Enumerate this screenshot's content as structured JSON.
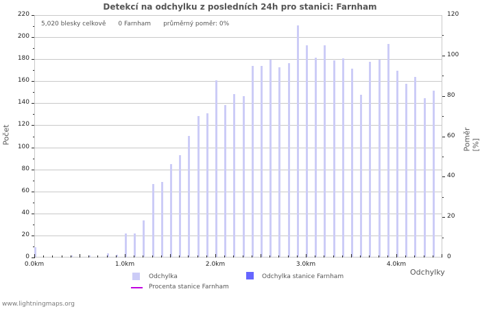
{
  "title": "Detekcí na odchylku z posledních 24h pro stanici: Farnham",
  "stats": {
    "total": "5,020 blesky celkově",
    "station": "0 Farnham",
    "ratio": "průměrný poměr: 0%"
  },
  "axes": {
    "left_label": "Počet",
    "right_label": "Poměr [%]",
    "x_label": "Odchylky",
    "left_ticks": [
      "0",
      "20",
      "40",
      "60",
      "80",
      "100",
      "120",
      "140",
      "160",
      "180",
      "200",
      "220"
    ],
    "right_ticks": [
      "0",
      "20",
      "40",
      "60",
      "80",
      "100",
      "120"
    ],
    "x_ticks": [
      "0.0km",
      "1.0km",
      "2.0km",
      "3.0km",
      "4.0km"
    ]
  },
  "legend": {
    "series1": "Odchylka",
    "series2": "Odchylka stanice Farnham",
    "series3": "Procenta stanice Farnham"
  },
  "colors": {
    "bar": "#ccccf7",
    "station_bar": "#6666ff",
    "line": "#c000e0",
    "grid": "#c8c8c8"
  },
  "footer": "www.lightningmaps.org",
  "chart_data": {
    "type": "bar",
    "title": "Detekcí na odchylku z posledních 24h pro stanici: Farnham",
    "xlabel": "Odchylky",
    "ylabel": "Počet",
    "y2label": "Poměr [%]",
    "ylim": [
      0,
      220
    ],
    "y2lim": [
      0,
      120
    ],
    "grid": true,
    "legend_position": "bottom",
    "categories": [
      "0.0km",
      "0.1km",
      "0.2km",
      "0.3km",
      "0.4km",
      "0.5km",
      "0.6km",
      "0.7km",
      "0.8km",
      "0.9km",
      "1.0km",
      "1.1km",
      "1.2km",
      "1.3km",
      "1.4km",
      "1.5km",
      "1.6km",
      "1.7km",
      "1.8km",
      "1.9km",
      "2.0km",
      "2.1km",
      "2.2km",
      "2.3km",
      "2.4km",
      "2.5km",
      "2.6km",
      "2.7km",
      "2.8km",
      "2.9km",
      "3.0km",
      "3.1km",
      "3.2km",
      "3.3km",
      "3.4km",
      "3.5km",
      "3.6km",
      "3.7km",
      "3.8km",
      "3.9km",
      "4.0km",
      "4.1km",
      "4.2km",
      "4.3km",
      "4.4km"
    ],
    "series": [
      {
        "name": "Odchylka",
        "values": [
          9,
          0,
          0,
          0,
          1,
          0,
          1,
          0,
          3,
          2,
          21,
          21,
          33,
          66,
          68,
          84,
          92,
          110,
          128,
          130,
          160,
          138,
          148,
          146,
          173,
          173,
          179,
          172,
          176,
          210,
          192,
          181,
          192,
          178,
          180,
          171,
          147,
          177,
          179,
          193,
          169,
          157,
          163,
          144,
          151
        ]
      },
      {
        "name": "Odchylka stanice Farnham",
        "values": [
          0,
          0,
          0,
          0,
          0,
          0,
          0,
          0,
          0,
          0,
          0,
          0,
          0,
          0,
          0,
          0,
          0,
          0,
          0,
          0,
          0,
          0,
          0,
          0,
          0,
          0,
          0,
          0,
          0,
          0,
          0,
          0,
          0,
          0,
          0,
          0,
          0,
          0,
          0,
          0,
          0,
          0,
          0,
          0,
          0
        ]
      },
      {
        "name": "Procenta stanice Farnham",
        "values": [
          0,
          0,
          0,
          0,
          0,
          0,
          0,
          0,
          0,
          0,
          0,
          0,
          0,
          0,
          0,
          0,
          0,
          0,
          0,
          0,
          0,
          0,
          0,
          0,
          0,
          0,
          0,
          0,
          0,
          0,
          0,
          0,
          0,
          0,
          0,
          0,
          0,
          0,
          0,
          0,
          0,
          0,
          0,
          0,
          0
        ]
      }
    ],
    "annotations": [
      "5,020 blesky celkově",
      "0 Farnham",
      "průměrný poměr: 0%"
    ]
  }
}
